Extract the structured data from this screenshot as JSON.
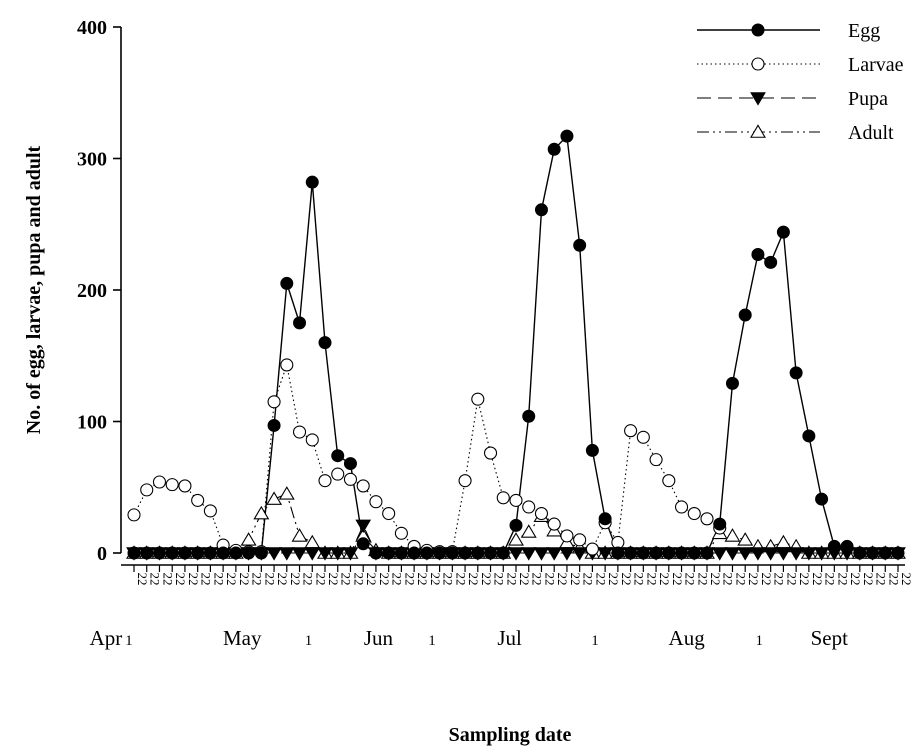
{
  "chart_data": {
    "type": "line",
    "title": "",
    "xlabel": "Sampling date",
    "ylabel": "No. of egg, larvae, pupa and adult",
    "ylim": [
      0,
      400
    ],
    "yticks": [
      "0",
      "100",
      "200",
      "300",
      "400"
    ],
    "x_tick_label": "2",
    "month_labels": [
      {
        "label": "Apr",
        "index": -2.2,
        "cls": "month"
      },
      {
        "label": "1",
        "index": -0.4,
        "cls": "small1"
      },
      {
        "label": "May",
        "index": 8.5,
        "cls": "month"
      },
      {
        "label": "1",
        "index": 13.7,
        "cls": "small1"
      },
      {
        "label": "Jun",
        "index": 19.2,
        "cls": "month"
      },
      {
        "label": "1",
        "index": 23.4,
        "cls": "small1"
      },
      {
        "label": "Jul",
        "index": 29.5,
        "cls": "month"
      },
      {
        "label": "1",
        "index": 36.2,
        "cls": "small1"
      },
      {
        "label": "Aug",
        "index": 43.4,
        "cls": "month"
      },
      {
        "label": "1",
        "index": 49.1,
        "cls": "small1"
      },
      {
        "label": "Sept",
        "index": 54.6,
        "cls": "month"
      }
    ],
    "n_points": 61,
    "series": [
      {
        "name": "Egg",
        "style": "solid",
        "marker": "filled-circle",
        "points": [
          [
            0,
            0
          ],
          [
            1,
            0
          ],
          [
            2,
            0
          ],
          [
            3,
            0
          ],
          [
            4,
            0
          ],
          [
            5,
            0
          ],
          [
            6,
            0
          ],
          [
            7,
            0
          ],
          [
            8,
            0
          ],
          [
            9,
            0
          ],
          [
            10,
            0
          ],
          [
            11,
            97
          ],
          [
            12,
            205
          ],
          [
            13,
            175
          ],
          [
            14,
            282
          ],
          [
            15,
            160
          ],
          [
            16,
            74
          ],
          [
            17,
            68
          ],
          [
            18,
            7
          ],
          [
            19,
            0
          ],
          [
            20,
            0
          ],
          [
            21,
            0
          ],
          [
            22,
            0
          ],
          [
            23,
            0
          ],
          [
            24,
            0
          ],
          [
            25,
            0
          ],
          [
            26,
            0
          ],
          [
            27,
            0
          ],
          [
            28,
            0
          ],
          [
            29,
            0
          ],
          [
            30,
            21
          ],
          [
            31,
            104
          ],
          [
            32,
            261
          ],
          [
            33,
            307
          ],
          [
            34,
            317
          ],
          [
            35,
            234
          ],
          [
            36,
            78
          ],
          [
            37,
            26
          ],
          [
            38,
            0
          ],
          [
            39,
            0
          ],
          [
            40,
            0
          ],
          [
            41,
            0
          ],
          [
            42,
            0
          ],
          [
            43,
            0
          ],
          [
            44,
            0
          ],
          [
            45,
            0
          ],
          [
            46,
            22
          ],
          [
            47,
            129
          ],
          [
            48,
            181
          ],
          [
            49,
            227
          ],
          [
            50,
            221
          ],
          [
            51,
            244
          ],
          [
            52,
            137
          ],
          [
            53,
            89
          ],
          [
            54,
            41
          ],
          [
            55,
            5
          ],
          [
            56,
            5
          ],
          [
            57,
            0
          ],
          [
            58,
            0
          ],
          [
            59,
            0
          ],
          [
            60,
            0
          ]
        ]
      },
      {
        "name": "Larvae",
        "style": "dotted",
        "marker": "open-circle",
        "points": [
          [
            0,
            29
          ],
          [
            1,
            48
          ],
          [
            2,
            54
          ],
          [
            3,
            52
          ],
          [
            4,
            51
          ],
          [
            5,
            40
          ],
          [
            6,
            32
          ],
          [
            7,
            6
          ],
          [
            8,
            2
          ],
          [
            9,
            1
          ],
          [
            10,
            1
          ],
          [
            11,
            115
          ],
          [
            12,
            143
          ],
          [
            13,
            92
          ],
          [
            14,
            86
          ],
          [
            15,
            55
          ],
          [
            16,
            60
          ],
          [
            17,
            56
          ],
          [
            18,
            51
          ],
          [
            19,
            39
          ],
          [
            20,
            30
          ],
          [
            21,
            15
          ],
          [
            22,
            5
          ],
          [
            23,
            2
          ],
          [
            24,
            1
          ],
          [
            25,
            1
          ],
          [
            26,
            55
          ],
          [
            27,
            117
          ],
          [
            28,
            76
          ],
          [
            29,
            42
          ],
          [
            30,
            40
          ],
          [
            31,
            35
          ],
          [
            32,
            30
          ],
          [
            33,
            22
          ],
          [
            34,
            13
          ],
          [
            35,
            10
          ],
          [
            36,
            3
          ],
          [
            37,
            23
          ],
          [
            38,
            8
          ],
          [
            39,
            93
          ],
          [
            40,
            88
          ],
          [
            41,
            71
          ],
          [
            42,
            55
          ],
          [
            43,
            35
          ],
          [
            44,
            30
          ],
          [
            45,
            26
          ],
          [
            46,
            19
          ]
        ]
      },
      {
        "name": "Pupa",
        "style": "dashed",
        "marker": "filled-triangle-down",
        "points": [
          [
            0,
            0
          ],
          [
            1,
            0
          ],
          [
            2,
            0
          ],
          [
            3,
            0
          ],
          [
            4,
            0
          ],
          [
            5,
            0
          ],
          [
            6,
            0
          ],
          [
            7,
            0
          ],
          [
            8,
            0
          ],
          [
            9,
            0
          ],
          [
            10,
            0
          ],
          [
            11,
            0
          ],
          [
            12,
            0
          ],
          [
            13,
            0
          ],
          [
            14,
            0
          ],
          [
            15,
            0
          ],
          [
            16,
            0
          ],
          [
            17,
            0
          ],
          [
            18,
            21
          ],
          [
            19,
            0
          ],
          [
            20,
            0
          ],
          [
            21,
            0
          ],
          [
            22,
            0
          ],
          [
            23,
            0
          ],
          [
            24,
            0
          ],
          [
            25,
            0
          ],
          [
            26,
            0
          ],
          [
            27,
            0
          ],
          [
            28,
            0
          ],
          [
            29,
            0
          ],
          [
            30,
            0
          ],
          [
            31,
            0
          ],
          [
            32,
            0
          ],
          [
            33,
            0
          ],
          [
            34,
            0
          ],
          [
            35,
            0
          ],
          [
            36,
            0
          ],
          [
            37,
            0
          ],
          [
            38,
            0
          ],
          [
            39,
            0
          ],
          [
            40,
            0
          ],
          [
            41,
            0
          ],
          [
            42,
            0
          ],
          [
            43,
            0
          ],
          [
            44,
            0
          ],
          [
            45,
            0
          ],
          [
            46,
            0
          ],
          [
            47,
            0
          ],
          [
            48,
            0
          ],
          [
            49,
            0
          ],
          [
            50,
            0
          ],
          [
            51,
            0
          ],
          [
            52,
            0
          ],
          [
            53,
            0
          ],
          [
            54,
            0
          ],
          [
            55,
            0
          ],
          [
            56,
            0
          ],
          [
            57,
            0
          ],
          [
            58,
            0
          ],
          [
            59,
            0
          ],
          [
            60,
            0
          ]
        ]
      },
      {
        "name": "Adult",
        "style": "dash-dot-dot",
        "marker": "open-triangle-up",
        "points": [
          [
            0,
            0
          ],
          [
            1,
            0
          ],
          [
            2,
            0
          ],
          [
            3,
            0
          ],
          [
            4,
            0
          ],
          [
            5,
            0
          ],
          [
            6,
            0
          ],
          [
            7,
            0
          ],
          [
            8,
            0
          ],
          [
            9,
            10
          ],
          [
            10,
            30
          ],
          [
            11,
            41
          ],
          [
            12,
            45
          ],
          [
            13,
            13
          ],
          [
            14,
            8
          ],
          [
            15,
            0
          ],
          [
            16,
            0
          ],
          [
            17,
            0
          ],
          [
            18,
            13
          ],
          [
            19,
            2
          ],
          [
            20,
            0
          ],
          [
            21,
            0
          ],
          [
            22,
            0
          ],
          [
            23,
            0
          ],
          [
            24,
            0
          ],
          [
            25,
            0
          ],
          [
            26,
            0
          ],
          [
            27,
            0
          ],
          [
            28,
            0
          ],
          [
            29,
            0
          ],
          [
            30,
            10
          ],
          [
            31,
            16
          ],
          [
            32,
            28
          ],
          [
            33,
            17
          ],
          [
            34,
            8
          ],
          [
            35,
            4
          ],
          [
            36,
            0
          ],
          [
            37,
            0
          ],
          [
            38,
            0
          ],
          [
            39,
            0
          ],
          [
            40,
            0
          ],
          [
            41,
            0
          ],
          [
            42,
            0
          ],
          [
            43,
            0
          ],
          [
            44,
            0
          ],
          [
            45,
            0
          ],
          [
            46,
            15
          ],
          [
            47,
            13
          ],
          [
            48,
            10
          ],
          [
            49,
            5
          ],
          [
            50,
            5
          ],
          [
            51,
            8
          ],
          [
            52,
            5
          ],
          [
            53,
            0
          ],
          [
            54,
            0
          ],
          [
            55,
            0
          ],
          [
            56,
            0
          ],
          [
            57,
            0
          ],
          [
            58,
            0
          ],
          [
            59,
            0
          ],
          [
            60,
            0
          ]
        ]
      }
    ],
    "legend_position": "top-right",
    "grid": false
  }
}
